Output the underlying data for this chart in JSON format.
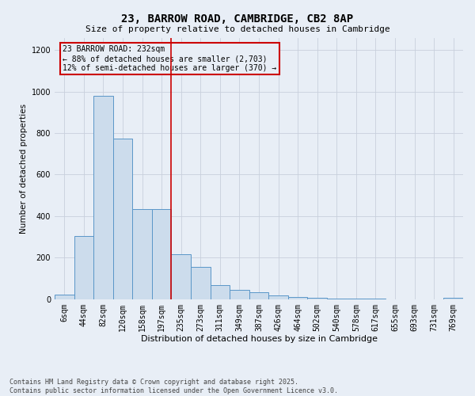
{
  "title_line1": "23, BARROW ROAD, CAMBRIDGE, CB2 8AP",
  "title_line2": "Size of property relative to detached houses in Cambridge",
  "xlabel": "Distribution of detached houses by size in Cambridge",
  "ylabel": "Number of detached properties",
  "annotation_title": "23 BARROW ROAD: 232sqm",
  "annotation_line2": "← 88% of detached houses are smaller (2,703)",
  "annotation_line3": "12% of semi-detached houses are larger (370) →",
  "footer_line1": "Contains HM Land Registry data © Crown copyright and database right 2025.",
  "footer_line2": "Contains public sector information licensed under the Open Government Licence v3.0.",
  "bar_color": "#ccdcec",
  "bar_edge_color": "#5a96c8",
  "grid_color": "#c8d0dc",
  "vline_color": "#cc0000",
  "annotation_box_color": "#cc0000",
  "background_color": "#e8eef6",
  "categories": [
    "6sqm",
    "44sqm",
    "82sqm",
    "120sqm",
    "158sqm",
    "197sqm",
    "235sqm",
    "273sqm",
    "311sqm",
    "349sqm",
    "387sqm",
    "426sqm",
    "464sqm",
    "502sqm",
    "540sqm",
    "578sqm",
    "617sqm",
    "655sqm",
    "693sqm",
    "731sqm",
    "769sqm"
  ],
  "values": [
    20,
    305,
    980,
    775,
    435,
    435,
    215,
    155,
    68,
    45,
    32,
    18,
    8,
    5,
    2,
    2,
    1,
    0,
    0,
    0,
    4
  ],
  "ylim": [
    0,
    1260
  ],
  "yticks": [
    0,
    200,
    400,
    600,
    800,
    1000,
    1200
  ],
  "vline_index": 6,
  "title1_fontsize": 10,
  "title2_fontsize": 8,
  "ylabel_fontsize": 7.5,
  "xlabel_fontsize": 8,
  "tick_fontsize": 7,
  "footer_fontsize": 6,
  "annotation_fontsize": 7
}
